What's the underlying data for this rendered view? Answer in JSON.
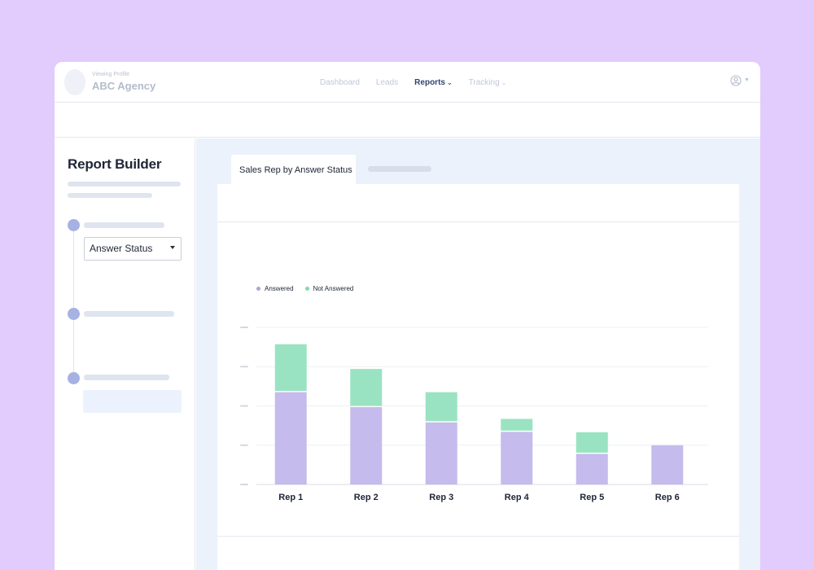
{
  "header": {
    "profile_caption": "Viewing Profile",
    "profile_name": "ABC Agency",
    "nav": [
      {
        "label": "Dashboard",
        "active": false,
        "has_menu": false
      },
      {
        "label": "Leads",
        "active": false,
        "has_menu": false
      },
      {
        "label": "Reports",
        "active": true,
        "has_menu": true
      },
      {
        "label": "Tracking",
        "active": false,
        "has_menu": true
      }
    ],
    "user_icon": "user-circle-icon"
  },
  "sidebar": {
    "title": "Report Builder",
    "select_value": "Answer Status"
  },
  "main": {
    "tabs": [
      {
        "label": "Sales Rep by Answer Status"
      }
    ]
  },
  "colors": {
    "answered": "#c5bbec",
    "not_answered": "#9ae3c2",
    "accent": "#2f4470"
  },
  "chart_data": {
    "type": "bar",
    "stacked": true,
    "categories": [
      "Rep 1",
      "Rep 2",
      "Rep 3",
      "Rep 4",
      "Rep 5",
      "Rep 6"
    ],
    "series": [
      {
        "name": "Answered",
        "values": [
          2.35,
          1.97,
          1.58,
          1.34,
          0.78,
          1.0
        ]
      },
      {
        "name": "Not Answered",
        "values": [
          1.22,
          0.97,
          0.77,
          0.33,
          0.55,
          0
        ]
      }
    ],
    "ylim": [
      0,
      4
    ],
    "grid": true,
    "legend": "top-left",
    "title": "",
    "xlabel": "",
    "ylabel": ""
  }
}
